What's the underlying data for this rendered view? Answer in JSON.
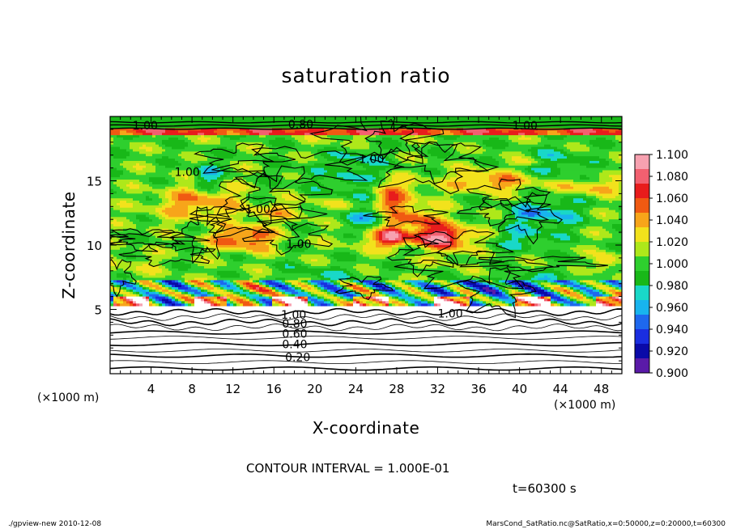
{
  "chart_data": {
    "type": "heatmap",
    "title": "saturation ratio",
    "xlabel": "X-coordinate",
    "ylabel": "Z-coordinate",
    "x_unit_label": "(×1000 m)",
    "y_unit_label": "(×1000 m)",
    "x_ticks": [
      "4",
      "8",
      "12",
      "16",
      "20",
      "24",
      "28",
      "32",
      "36",
      "40",
      "44",
      "48"
    ],
    "y_ticks": [
      "5",
      "10",
      "15"
    ],
    "xlim": [
      0,
      50
    ],
    "ylim": [
      0,
      20
    ],
    "colorbar": {
      "min": 0.9,
      "max": 1.1,
      "labels": [
        "1.100",
        "1.080",
        "1.060",
        "1.040",
        "1.020",
        "1.000",
        "0.980",
        "0.960",
        "0.940",
        "0.920",
        "0.900"
      ],
      "colors": [
        "#f7a1b0",
        "#f26070",
        "#e81c1c",
        "#f05a12",
        "#f7a51a",
        "#f2e21c",
        "#aee81a",
        "#2ecf2e",
        "#18b818",
        "#19d8c8",
        "#18b4ee",
        "#1e68ee",
        "#1a2ee0",
        "#0a0aa8",
        "#5a1aa8"
      ]
    },
    "contour_labels": [
      "1.00",
      "0.80",
      "1.00",
      "1.00",
      "1.00",
      "1.00",
      "1.00",
      "1.00",
      "1.00",
      "0.80",
      "0.60",
      "0.40",
      "0.20"
    ],
    "contour_interval_text": "CONTOUR INTERVAL = 1.000E-01",
    "time_text": "t=60300 s"
  },
  "footer": {
    "left": "./gpview-new  2010-12-08",
    "right": "MarsCond_SatRatio.nc@SatRatio,x=0:50000,z=0:20000,t=60300"
  }
}
